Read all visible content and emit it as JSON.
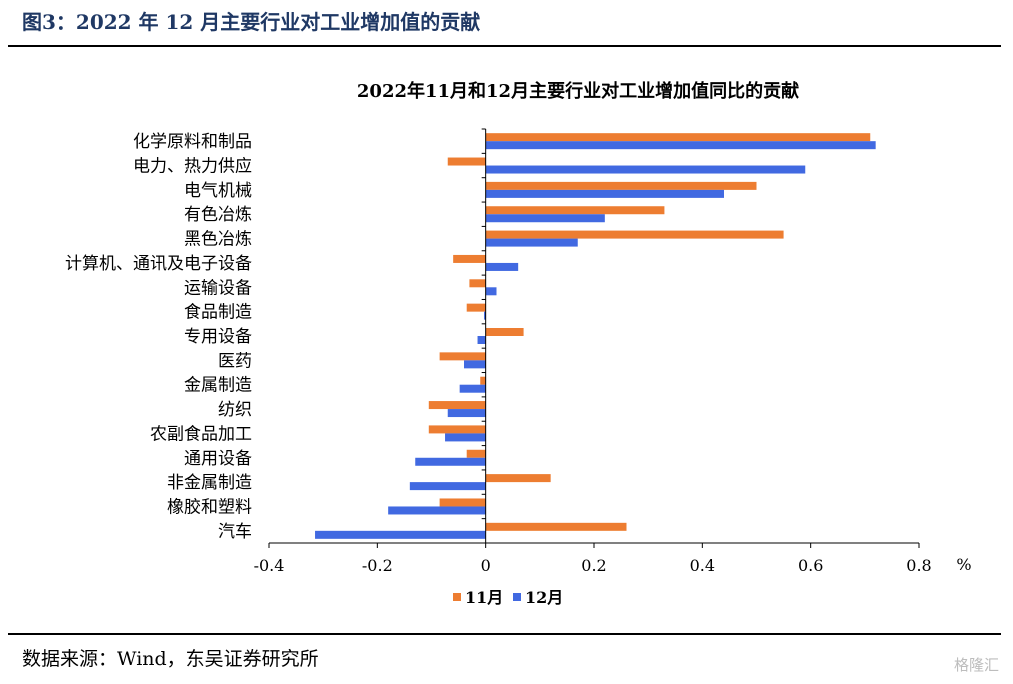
{
  "figure_title": "图3：2022 年 12 月主要行业对工业增加值的贡献",
  "source": "数据来源：Wind，东吴证券研究所",
  "watermark": "格隆汇",
  "colors": {
    "nov": "#ED7D31",
    "dec": "#4169E1",
    "title": "#1f3864"
  },
  "chart_data": {
    "type": "bar",
    "orientation": "horizontal",
    "title": "2022年11月和12月主要行业对工业增加值同比的贡献",
    "unit": "%",
    "xlim": [
      -0.4,
      0.8
    ],
    "xticks": [
      "-0.4",
      "-0.2",
      "0",
      "0.2",
      "0.4",
      "0.6",
      "0.8"
    ],
    "grid": false,
    "legend_position": "bottom",
    "categories": [
      "化学原料和制品",
      "电力、热力供应",
      "电气机械",
      "有色冶炼",
      "黑色冶炼",
      "计算机、通讯及电子设备",
      "运输设备",
      "食品制造",
      "专用设备",
      "医药",
      "金属制造",
      "纺织",
      "农副食品加工",
      "通用设备",
      "非金属制造",
      "橡胶和塑料",
      "汽车"
    ],
    "series": [
      {
        "name": "11月",
        "values": [
          0.71,
          -0.07,
          0.5,
          0.33,
          0.55,
          -0.06,
          -0.03,
          -0.035,
          0.07,
          -0.085,
          -0.01,
          -0.105,
          -0.105,
          -0.035,
          0.12,
          -0.085,
          0.26
        ]
      },
      {
        "name": "12月",
        "values": [
          0.72,
          0.59,
          0.44,
          0.22,
          0.17,
          0.06,
          0.02,
          -0.003,
          -0.015,
          -0.04,
          -0.048,
          -0.07,
          -0.075,
          -0.13,
          -0.14,
          -0.18,
          -0.315
        ]
      }
    ]
  }
}
